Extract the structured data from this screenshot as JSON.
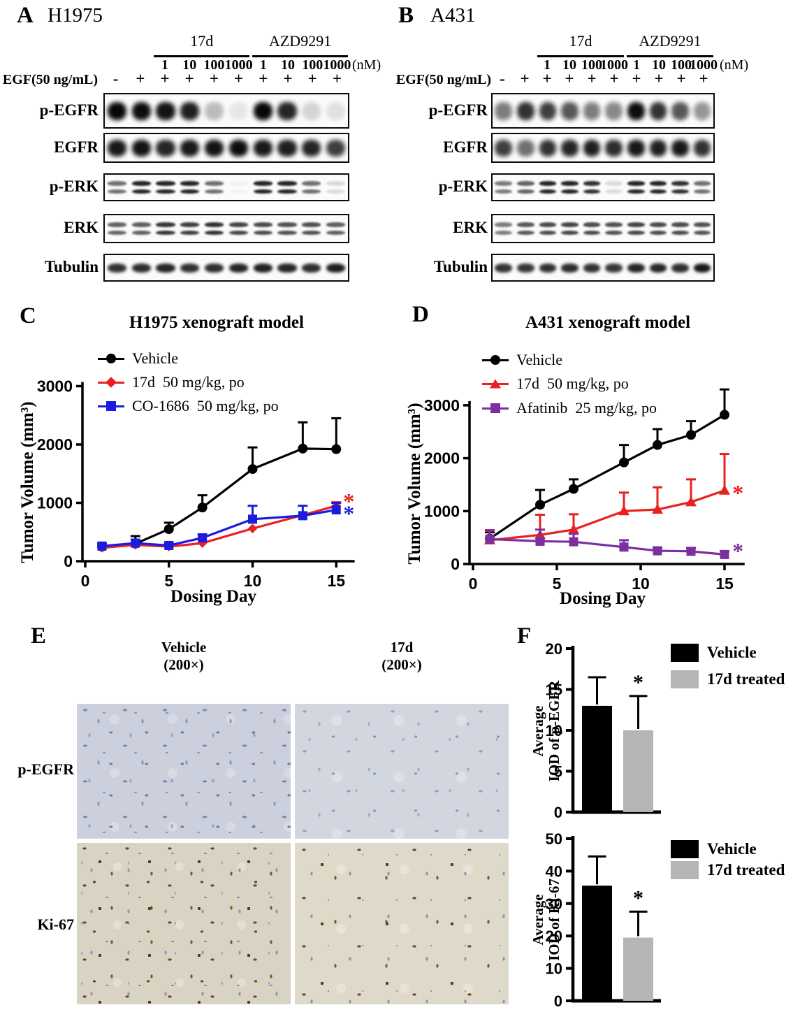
{
  "panel_a": {
    "label": "A",
    "cell_line": "H1975",
    "egf_label": "EGF(50 ng/mL)",
    "dose_unit": "(nM)",
    "treatments": [
      {
        "name": "17d",
        "doses": [
          "1",
          "10",
          "100",
          "1000"
        ]
      },
      {
        "name": "AZD9291",
        "doses": [
          "1",
          "10",
          "100",
          "1000"
        ]
      }
    ],
    "lane_signs": [
      "-",
      "+",
      "+",
      "+",
      "+",
      "+",
      "+",
      "+",
      "+",
      "+"
    ],
    "blots": [
      {
        "label": "p-EGFR",
        "bands": 1,
        "band_h": 26,
        "lanes": [
          0.97,
          0.95,
          0.92,
          0.88,
          0.25,
          0.08,
          0.97,
          0.85,
          0.15,
          0.1
        ]
      },
      {
        "label": "EGFR",
        "bands": 1,
        "band_h": 24,
        "lanes": [
          0.9,
          0.92,
          0.85,
          0.9,
          0.92,
          0.95,
          0.9,
          0.88,
          0.85,
          0.75
        ]
      },
      {
        "label": "p-ERK",
        "bands": 2,
        "band_h": 6.5,
        "lanes": [
          0.55,
          0.85,
          0.85,
          0.85,
          0.55,
          0.03,
          0.85,
          0.85,
          0.55,
          0.12
        ]
      },
      {
        "label": "ERK",
        "bands": 2,
        "band_h": 6.5,
        "lanes": [
          0.6,
          0.62,
          0.78,
          0.75,
          0.8,
          0.72,
          0.7,
          0.68,
          0.68,
          0.62
        ]
      },
      {
        "label": "Tubulin",
        "bands": 1,
        "band_h": 13,
        "lanes": [
          0.8,
          0.82,
          0.85,
          0.8,
          0.82,
          0.85,
          0.88,
          0.85,
          0.82,
          0.88
        ]
      }
    ]
  },
  "panel_b": {
    "label": "B",
    "cell_line": "A431",
    "egf_label": "EGF(50 ng/mL)",
    "dose_unit": "(nM)",
    "treatments": [
      {
        "name": "17d",
        "doses": [
          "1",
          "10",
          "100",
          "1000"
        ]
      },
      {
        "name": "AZD9291",
        "doses": [
          "1",
          "10",
          "100",
          "1000"
        ]
      }
    ],
    "lane_signs": [
      "-",
      "+",
      "+",
      "+",
      "+",
      "+",
      "+",
      "+",
      "+",
      "+"
    ],
    "blots": [
      {
        "label": "p-EGFR",
        "bands": 1,
        "band_h": 26,
        "lanes": [
          0.5,
          0.8,
          0.75,
          0.65,
          0.5,
          0.45,
          0.95,
          0.8,
          0.65,
          0.4
        ]
      },
      {
        "label": "EGFR",
        "bands": 1,
        "band_h": 24,
        "lanes": [
          0.75,
          0.55,
          0.8,
          0.85,
          0.88,
          0.82,
          0.9,
          0.88,
          0.9,
          0.8
        ]
      },
      {
        "label": "p-ERK",
        "bands": 2,
        "band_h": 6.5,
        "lanes": [
          0.5,
          0.6,
          0.85,
          0.85,
          0.8,
          0.12,
          0.85,
          0.85,
          0.8,
          0.55
        ]
      },
      {
        "label": "ERK",
        "bands": 2,
        "band_h": 6.5,
        "lanes": [
          0.5,
          0.65,
          0.7,
          0.72,
          0.7,
          0.68,
          0.72,
          0.7,
          0.7,
          0.68
        ]
      },
      {
        "label": "Tubulin",
        "bands": 1,
        "band_h": 13,
        "lanes": [
          0.8,
          0.78,
          0.8,
          0.82,
          0.8,
          0.78,
          0.85,
          0.85,
          0.82,
          0.9
        ]
      }
    ]
  },
  "chart_data": [
    {
      "id": "C",
      "panel_label": "C",
      "type": "line",
      "title": "H1975 xenograft model",
      "xlabel": "Dosing Day",
      "ylabel": "Tumor Volume (mm³)",
      "xticks": [
        0,
        5,
        10,
        15
      ],
      "yticks": [
        0,
        1000,
        2000,
        3000
      ],
      "xlim": [
        0,
        16.1
      ],
      "ylim": [
        0,
        3000
      ],
      "x": [
        1,
        3,
        5,
        7,
        10,
        13,
        15
      ],
      "series": [
        {
          "name": "Vehicle",
          "color": "#000000",
          "marker": "circle",
          "values": [
            250,
            300,
            550,
            920,
            1580,
            1930,
            1920
          ],
          "err": [
            0,
            130,
            110,
            210,
            370,
            450,
            530
          ]
        },
        {
          "name": "17d  50 mg/kg, po",
          "color": "#e8201f",
          "marker": "diamond",
          "values": [
            230,
            280,
            250,
            310,
            560,
            790,
            950
          ],
          "err": [
            0,
            0,
            0,
            0,
            0,
            0,
            60
          ]
        },
        {
          "name": "CO-1686  50 mg/kg, po",
          "color": "#1c1ce0",
          "marker": "square",
          "values": [
            260,
            310,
            270,
            400,
            720,
            780,
            880
          ],
          "err": [
            40,
            60,
            40,
            60,
            230,
            170,
            120
          ]
        }
      ],
      "annotations": [
        {
          "text": "*",
          "color": "#e8201f",
          "day": 15.75,
          "value": 1030
        },
        {
          "text": "*",
          "color": "#1c1ce0",
          "day": 15.75,
          "value": 820
        }
      ]
    },
    {
      "id": "D",
      "panel_label": "D",
      "type": "line",
      "title": "A431 xenograft model",
      "xlabel": "Dosing Day",
      "ylabel": "Tumor Volume (mm³)",
      "xticks": [
        0,
        5,
        10,
        15
      ],
      "yticks": [
        0,
        1000,
        2000,
        3000
      ],
      "xlim": [
        0,
        16.2
      ],
      "ylim": [
        0,
        3000
      ],
      "x": [
        1,
        4,
        6,
        9,
        11,
        13,
        15
      ],
      "series": [
        {
          "name": "Vehicle",
          "color": "#000000",
          "marker": "circle",
          "values": [
            480,
            1120,
            1420,
            1920,
            2250,
            2440,
            2820
          ],
          "err": [
            120,
            280,
            180,
            330,
            300,
            260,
            480
          ]
        },
        {
          "name": "17d  50 mg/kg, po",
          "color": "#e8201f",
          "marker": "triangle",
          "values": [
            450,
            550,
            650,
            1000,
            1030,
            1170,
            1390
          ],
          "err": [
            180,
            380,
            290,
            350,
            420,
            430,
            690
          ]
        },
        {
          "name": "Afatinib  25 mg/kg, po",
          "color": "#7c2f9e",
          "marker": "square",
          "values": [
            470,
            430,
            420,
            320,
            250,
            240,
            180
          ],
          "err": [
            170,
            220,
            150,
            130,
            60,
            60,
            60
          ]
        }
      ],
      "annotations": [
        {
          "text": "*",
          "color": "#e8201f",
          "day": 15.8,
          "value": 1345
        },
        {
          "text": "*",
          "color": "#7c2f9e",
          "day": 15.8,
          "value": 250
        }
      ]
    },
    {
      "id": "F1",
      "type": "bar",
      "ylabel_lines": [
        "Average",
        "IOD of p-EGFR"
      ],
      "categories": [
        "Vehicle",
        "17d treated"
      ],
      "values": [
        13,
        10
      ],
      "errors": [
        3.5,
        4.2
      ],
      "colors": [
        "#000000",
        "#b5b5b5"
      ],
      "ylim": [
        0,
        20
      ],
      "yticks": [
        0,
        5,
        10,
        15,
        20
      ],
      "sig": {
        "text": "*",
        "bar": 1
      },
      "legend": [
        {
          "label": "Vehicle",
          "color": "#000000"
        },
        {
          "label": "17d treated",
          "color": "#b5b5b5"
        }
      ]
    },
    {
      "id": "F2",
      "type": "bar",
      "ylabel_lines": [
        "Average",
        "IOD of Ki-67"
      ],
      "categories": [
        "Vehicle",
        "17d treated"
      ],
      "values": [
        35.5,
        19.5
      ],
      "errors": [
        9,
        8
      ],
      "colors": [
        "#000000",
        "#b5b5b5"
      ],
      "ylim": [
        0,
        50
      ],
      "yticks": [
        0,
        10,
        20,
        30,
        40,
        50
      ],
      "sig": {
        "text": "*",
        "bar": 1
      },
      "legend": [
        {
          "label": "Vehicle",
          "color": "#000000"
        },
        {
          "label": "17d treated",
          "color": "#b5b5b5"
        }
      ]
    }
  ],
  "panel_e": {
    "label": "E",
    "columns": [
      {
        "title": "Vehicle",
        "magnification": "(200×)"
      },
      {
        "title": "17d",
        "magnification": "(200×)"
      }
    ],
    "rows": [
      "p-EGFR",
      "Ki-67"
    ]
  },
  "panel_f": {
    "label": "F"
  }
}
